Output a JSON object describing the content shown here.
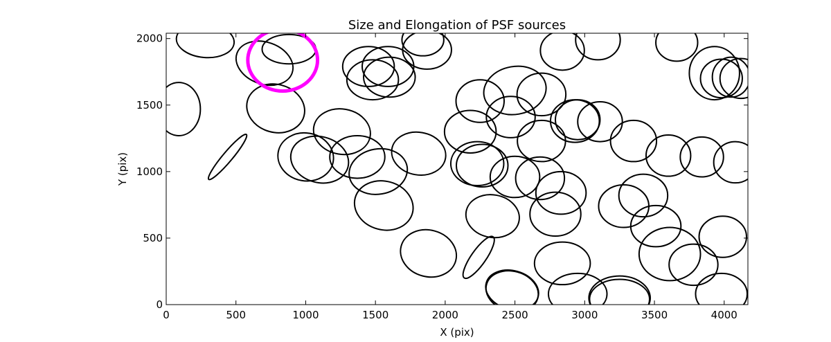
{
  "chart_data": {
    "type": "scatter",
    "marker": "ellipse",
    "title": "Size and Elongation of PSF sources",
    "xlabel": "X (pix)",
    "ylabel": "Y (pix)",
    "xlim": [
      0,
      4170
    ],
    "ylim": [
      0,
      2040
    ],
    "xticks": [
      0,
      500,
      1000,
      1500,
      2000,
      2500,
      3000,
      3500,
      4000
    ],
    "yticks": [
      0,
      500,
      1000,
      1500,
      2000
    ],
    "grid": false,
    "legend": "none",
    "colors": {
      "ellipse": "#000000",
      "highlight": "#ff00ff"
    },
    "highlight": {
      "x": 835,
      "y": 1838,
      "width": 500,
      "height": 465,
      "angle": 0
    },
    "ellipses": [
      {
        "x": 280,
        "y": 1985,
        "width": 415,
        "height": 255,
        "angle": -5
      },
      {
        "x": 705,
        "y": 1815,
        "width": 420,
        "height": 315,
        "angle": -20
      },
      {
        "x": 880,
        "y": 1920,
        "width": 385,
        "height": 220,
        "angle": 0
      },
      {
        "x": 90,
        "y": 1470,
        "width": 310,
        "height": 400,
        "angle": 0
      },
      {
        "x": 785,
        "y": 1475,
        "width": 420,
        "height": 360,
        "angle": -15
      },
      {
        "x": 440,
        "y": 1110,
        "width": 420,
        "height": 72,
        "angle": 50
      },
      {
        "x": 1000,
        "y": 1110,
        "width": 400,
        "height": 360,
        "angle": -10
      },
      {
        "x": 1100,
        "y": 1090,
        "width": 420,
        "height": 345,
        "angle": -15
      },
      {
        "x": 1260,
        "y": 1300,
        "width": 410,
        "height": 340,
        "angle": -10
      },
      {
        "x": 1370,
        "y": 1110,
        "width": 395,
        "height": 320,
        "angle": 0
      },
      {
        "x": 1520,
        "y": 1000,
        "width": 420,
        "height": 340,
        "angle": 10
      },
      {
        "x": 1560,
        "y": 745,
        "width": 425,
        "height": 365,
        "angle": -15
      },
      {
        "x": 1810,
        "y": 1135,
        "width": 390,
        "height": 320,
        "angle": -10
      },
      {
        "x": 1880,
        "y": 385,
        "width": 405,
        "height": 350,
        "angle": -15
      },
      {
        "x": 1450,
        "y": 1790,
        "width": 370,
        "height": 300,
        "angle": 0
      },
      {
        "x": 1480,
        "y": 1690,
        "width": 370,
        "height": 300,
        "angle": 0
      },
      {
        "x": 1590,
        "y": 1790,
        "width": 370,
        "height": 300,
        "angle": 0
      },
      {
        "x": 1600,
        "y": 1710,
        "width": 370,
        "height": 300,
        "angle": 0
      },
      {
        "x": 1870,
        "y": 1915,
        "width": 350,
        "height": 290,
        "angle": 0
      },
      {
        "x": 1840,
        "y": 1990,
        "width": 300,
        "height": 240,
        "angle": 0
      },
      {
        "x": 2180,
        "y": 1300,
        "width": 370,
        "height": 320,
        "angle": 0
      },
      {
        "x": 2250,
        "y": 1530,
        "width": 345,
        "height": 320,
        "angle": 0
      },
      {
        "x": 2230,
        "y": 1060,
        "width": 380,
        "height": 330,
        "angle": 0
      },
      {
        "x": 2265,
        "y": 1045,
        "width": 370,
        "height": 320,
        "angle": 0
      },
      {
        "x": 2240,
        "y": 355,
        "width": 360,
        "height": 110,
        "angle": 55
      },
      {
        "x": 2340,
        "y": 665,
        "width": 385,
        "height": 320,
        "angle": -10
      },
      {
        "x": 2470,
        "y": 1410,
        "width": 350,
        "height": 310,
        "angle": 0
      },
      {
        "x": 2500,
        "y": 1610,
        "width": 450,
        "height": 360,
        "angle": 10
      },
      {
        "x": 2500,
        "y": 960,
        "width": 355,
        "height": 310,
        "angle": 0
      },
      {
        "x": 2480,
        "y": 110,
        "width": 385,
        "height": 290,
        "angle": -15
      },
      {
        "x": 2480,
        "y": 100,
        "width": 380,
        "height": 300,
        "angle": -15
      },
      {
        "x": 2690,
        "y": 1580,
        "width": 350,
        "height": 320,
        "angle": 0
      },
      {
        "x": 2690,
        "y": 1230,
        "width": 345,
        "height": 310,
        "angle": 0
      },
      {
        "x": 2680,
        "y": 950,
        "width": 350,
        "height": 320,
        "angle": 0
      },
      {
        "x": 2790,
        "y": 680,
        "width": 365,
        "height": 330,
        "angle": 0
      },
      {
        "x": 2830,
        "y": 840,
        "width": 360,
        "height": 320,
        "angle": 0
      },
      {
        "x": 2840,
        "y": 310,
        "width": 400,
        "height": 320,
        "angle": 0
      },
      {
        "x": 2840,
        "y": 1910,
        "width": 315,
        "height": 295,
        "angle": 0
      },
      {
        "x": 2930,
        "y": 1380,
        "width": 350,
        "height": 320,
        "angle": 0
      },
      {
        "x": 2950,
        "y": 1390,
        "width": 320,
        "height": 300,
        "angle": 0
      },
      {
        "x": 2950,
        "y": 80,
        "width": 420,
        "height": 310,
        "angle": 0
      },
      {
        "x": 3110,
        "y": 1375,
        "width": 320,
        "height": 300,
        "angle": 0
      },
      {
        "x": 3095,
        "y": 1990,
        "width": 320,
        "height": 300,
        "angle": 0
      },
      {
        "x": 3250,
        "y": 50,
        "width": 440,
        "height": 330,
        "angle": 0
      },
      {
        "x": 3250,
        "y": 40,
        "width": 430,
        "height": 300,
        "angle": 0
      },
      {
        "x": 3280,
        "y": 740,
        "width": 360,
        "height": 320,
        "angle": 0
      },
      {
        "x": 3350,
        "y": 1230,
        "width": 330,
        "height": 310,
        "angle": 0
      },
      {
        "x": 3420,
        "y": 820,
        "width": 350,
        "height": 320,
        "angle": 0
      },
      {
        "x": 3510,
        "y": 590,
        "width": 360,
        "height": 310,
        "angle": 0
      },
      {
        "x": 3610,
        "y": 380,
        "width": 440,
        "height": 400,
        "angle": 0
      },
      {
        "x": 3600,
        "y": 1120,
        "width": 320,
        "height": 310,
        "angle": 0
      },
      {
        "x": 3660,
        "y": 1970,
        "width": 300,
        "height": 280,
        "angle": 0
      },
      {
        "x": 3780,
        "y": 300,
        "width": 350,
        "height": 310,
        "angle": 0
      },
      {
        "x": 3840,
        "y": 1110,
        "width": 310,
        "height": 300,
        "angle": 0
      },
      {
        "x": 3930,
        "y": 1740,
        "width": 360,
        "height": 400,
        "angle": 0
      },
      {
        "x": 3980,
        "y": 1700,
        "width": 300,
        "height": 290,
        "angle": 0
      },
      {
        "x": 4050,
        "y": 1710,
        "width": 270,
        "height": 300,
        "angle": 0
      },
      {
        "x": 4120,
        "y": 1700,
        "width": 300,
        "height": 300,
        "angle": 0
      },
      {
        "x": 3990,
        "y": 510,
        "width": 340,
        "height": 310,
        "angle": 0
      },
      {
        "x": 3980,
        "y": 80,
        "width": 370,
        "height": 310,
        "angle": 0
      },
      {
        "x": 4080,
        "y": 1070,
        "width": 310,
        "height": 310,
        "angle": 0
      }
    ]
  }
}
